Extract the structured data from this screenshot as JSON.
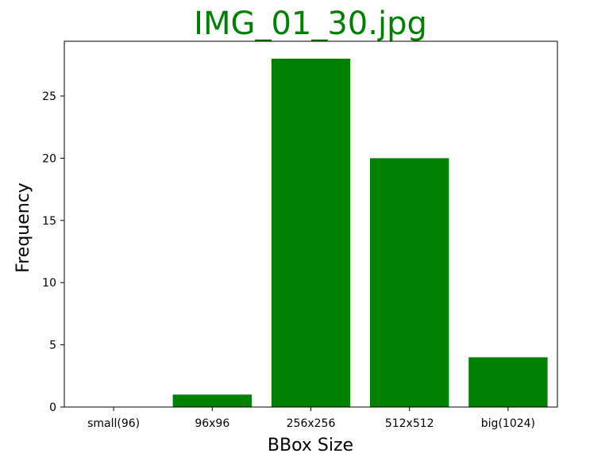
{
  "chart_data": {
    "type": "bar",
    "title": "IMG_01_30.jpg",
    "xlabel": "BBox Size",
    "ylabel": "Frequency",
    "categories": [
      "small(96)",
      "96x96",
      "256x256",
      "512x512",
      "big(1024)"
    ],
    "values": [
      0,
      1,
      28,
      20,
      4
    ],
    "ylim": [
      0,
      29.4
    ],
    "yticks": [
      0,
      5,
      10,
      15,
      20,
      25
    ],
    "bar_color": "#008000",
    "title_color": "#008000",
    "grid": false
  }
}
